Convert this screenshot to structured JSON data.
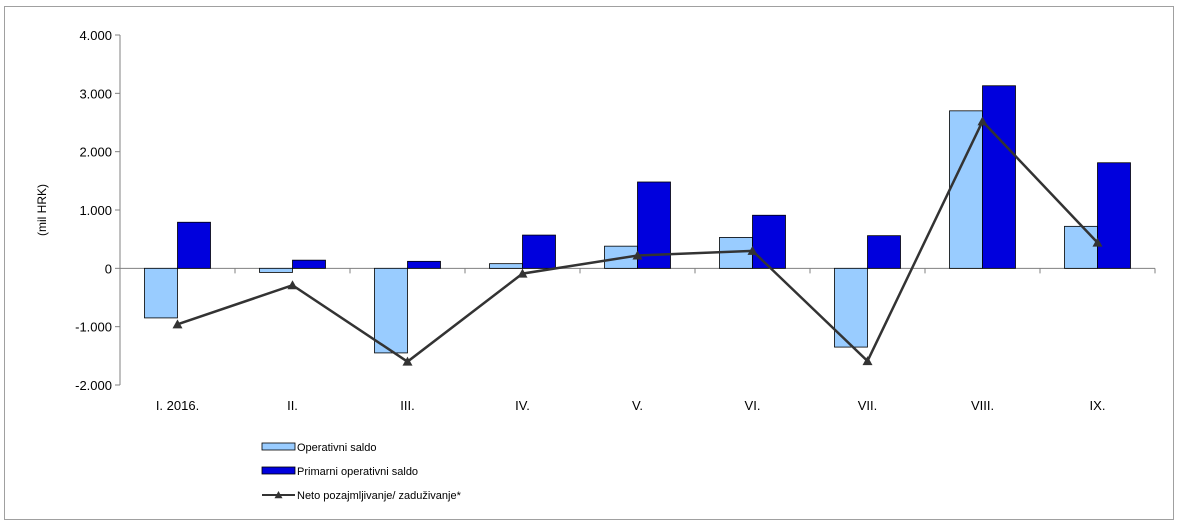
{
  "chart_data": {
    "type": "bar",
    "title": "",
    "xlabel": "",
    "ylabel": "(mil HRK)",
    "ylim": [
      -2000,
      4000
    ],
    "yticks": [
      4000,
      3000,
      2000,
      1000,
      0,
      -1000,
      -2000
    ],
    "ytick_labels": [
      "4.000",
      "3.000",
      "2.000",
      "1.000",
      "0",
      "-1.000",
      "-2.000"
    ],
    "categories": [
      "I. 2016.",
      "II.",
      "III.",
      "IV.",
      "V.",
      "VI.",
      "VII.",
      "VIII.",
      "IX."
    ],
    "series": [
      {
        "name": "Operativni saldo",
        "kind": "bar",
        "color": "#99ccff",
        "values": [
          -850,
          -70,
          -1450,
          80,
          380,
          530,
          -1350,
          2700,
          720
        ]
      },
      {
        "name": "Primarni operativni saldo",
        "kind": "bar",
        "color": "#0000dd",
        "values": [
          790,
          140,
          120,
          570,
          1480,
          910,
          560,
          3130,
          1810
        ]
      },
      {
        "name": "Neto pozajmljivanje/ zaduživanje*",
        "kind": "line",
        "color": "#333333",
        "values": [
          -960,
          -290,
          -1600,
          -90,
          220,
          300,
          -1590,
          2520,
          440
        ]
      }
    ],
    "grid": false,
    "legend_position": "bottom-left"
  }
}
